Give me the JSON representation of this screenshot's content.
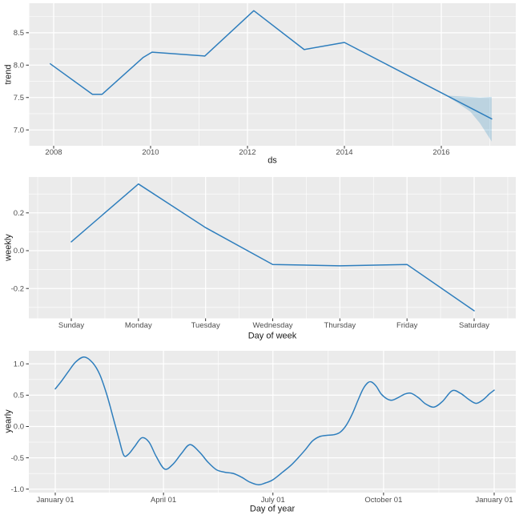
{
  "figure": {
    "background": "#FFFFFF",
    "panel_background": "#EBEBEB",
    "gridline_color": "#FFFFFF",
    "tick_mark_color": "#333333",
    "tick_label_color": "#4D4D4D",
    "axis_title_color": "#1A1A1A",
    "line_color": "#2E7EBD",
    "band_color": "#0072B2",
    "band_opacity": 0.2
  },
  "chart_data": [
    {
      "type": "line",
      "name": "trend",
      "title": "",
      "xlabel": "ds",
      "ylabel": "trend",
      "xlim": [
        2007.49,
        2017.54
      ],
      "ylim": [
        6.76,
        8.96
      ],
      "grid": "on",
      "legend": "none",
      "x_ticks": [
        {
          "value": 2008,
          "label": "2008"
        },
        {
          "value": 2010,
          "label": "2010"
        },
        {
          "value": 2012,
          "label": "2012"
        },
        {
          "value": 2014,
          "label": "2014"
        },
        {
          "value": 2016,
          "label": "2016"
        }
      ],
      "x_minor_ticks": [
        2007.5,
        2009,
        2011,
        2013,
        2015,
        2017
      ],
      "y_ticks": [
        {
          "value": 7.0,
          "label": "7.0"
        },
        {
          "value": 7.5,
          "label": "7.5"
        },
        {
          "value": 8.0,
          "label": "8.0"
        },
        {
          "value": 8.5,
          "label": "8.5"
        }
      ],
      "y_minor_ticks": [
        7.25,
        7.75,
        8.25,
        8.75
      ],
      "series": [
        {
          "name": "trend",
          "smooth": false,
          "x": [
            2007.93,
            2008.8,
            2009.0,
            2009.85,
            2010.03,
            2011.12,
            2012.13,
            2013.17,
            2014.0,
            2017.04
          ],
          "y": [
            8.02,
            7.55,
            7.55,
            8.12,
            8.2,
            8.14,
            8.84,
            8.24,
            8.35,
            7.17
          ]
        }
      ],
      "uncertainty_band": {
        "x": [
          2016.1,
          2016.35,
          2016.6,
          2016.8,
          2017.04
        ],
        "upper": [
          7.53,
          7.52,
          7.51,
          7.5,
          7.51
        ],
        "lower": [
          7.53,
          7.41,
          7.28,
          7.1,
          6.82
        ]
      }
    },
    {
      "type": "line",
      "name": "weekly",
      "title": "",
      "xlabel": "Day of week",
      "ylabel": "weekly",
      "categories": [
        "Sunday",
        "Monday",
        "Tuesday",
        "Wednesday",
        "Thursday",
        "Friday",
        "Saturday"
      ],
      "xlim": [
        -0.63,
        6.62
      ],
      "ylim": [
        -0.358,
        0.39
      ],
      "grid": "on",
      "legend": "none",
      "x_ticks": [
        {
          "value": 0,
          "label": "Sunday"
        },
        {
          "value": 1,
          "label": "Monday"
        },
        {
          "value": 2,
          "label": "Tuesday"
        },
        {
          "value": 3,
          "label": "Wednesday"
        },
        {
          "value": 4,
          "label": "Thursday"
        },
        {
          "value": 5,
          "label": "Friday"
        },
        {
          "value": 6,
          "label": "Saturday"
        }
      ],
      "x_minor_ticks": [
        -0.5,
        0.5,
        1.5,
        2.5,
        3.5,
        4.5,
        5.5,
        6.5
      ],
      "y_ticks": [
        {
          "value": -0.2,
          "label": "-0.2"
        },
        {
          "value": 0.0,
          "label": "0.0"
        },
        {
          "value": 0.2,
          "label": "0.2"
        }
      ],
      "y_minor_ticks": [
        -0.3,
        -0.1,
        0.1,
        0.3
      ],
      "series": [
        {
          "name": "weekly",
          "smooth": false,
          "x": [
            0,
            1,
            2,
            3,
            4,
            5,
            6
          ],
          "y": [
            0.047,
            0.353,
            0.122,
            -0.073,
            -0.08,
            -0.073,
            -0.318
          ]
        }
      ]
    },
    {
      "type": "line",
      "name": "yearly",
      "title": "",
      "xlabel": "Day of year",
      "ylabel": "yearly",
      "xlim": [
        -19.6,
        384
      ],
      "ylim": [
        -1.06,
        1.215
      ],
      "grid": "on",
      "legend": "none",
      "x_ticks": [
        {
          "value": 1,
          "label": "January 01"
        },
        {
          "value": 91,
          "label": "April 01"
        },
        {
          "value": 182,
          "label": "July 01"
        },
        {
          "value": 274,
          "label": "October 01"
        },
        {
          "value": 366,
          "label": "January 01"
        }
      ],
      "x_minor_ticks": [
        46,
        136.5,
        228,
        320
      ],
      "y_ticks": [
        {
          "value": -1.0,
          "label": "-1.0"
        },
        {
          "value": -0.5,
          "label": "-0.5"
        },
        {
          "value": 0.0,
          "label": "0.0"
        },
        {
          "value": 0.5,
          "label": "0.5"
        },
        {
          "value": 1.0,
          "label": "1.0"
        }
      ],
      "y_minor_ticks": [
        -0.75,
        -0.25,
        0.25,
        0.75
      ],
      "series": [
        {
          "name": "yearly",
          "smooth": true,
          "x": [
            1,
            6,
            12,
            18,
            25,
            32,
            38,
            44,
            50,
            54,
            58,
            62,
            67,
            73,
            79,
            85,
            92,
            99,
            106,
            113,
            121,
            128,
            135,
            142,
            149,
            156,
            163,
            170,
            176,
            182,
            190,
            197,
            203,
            209,
            215,
            221,
            227,
            233,
            238,
            243,
            248,
            253,
            257,
            261,
            264,
            268,
            272,
            277,
            281,
            286,
            292,
            297,
            303,
            309,
            316,
            323,
            331,
            338,
            345,
            351,
            357,
            362,
            366
          ],
          "y": [
            0.6,
            0.72,
            0.88,
            1.03,
            1.11,
            1.02,
            0.83,
            0.5,
            0.08,
            -0.2,
            -0.46,
            -0.44,
            -0.32,
            -0.18,
            -0.25,
            -0.48,
            -0.68,
            -0.6,
            -0.43,
            -0.29,
            -0.41,
            -0.57,
            -0.69,
            -0.73,
            -0.75,
            -0.81,
            -0.89,
            -0.93,
            -0.9,
            -0.85,
            -0.73,
            -0.62,
            -0.5,
            -0.37,
            -0.23,
            -0.16,
            -0.14,
            -0.13,
            -0.09,
            0.02,
            0.2,
            0.43,
            0.6,
            0.7,
            0.71,
            0.64,
            0.52,
            0.44,
            0.42,
            0.46,
            0.52,
            0.53,
            0.46,
            0.36,
            0.31,
            0.4,
            0.57,
            0.53,
            0.43,
            0.37,
            0.43,
            0.52,
            0.58
          ]
        }
      ]
    }
  ]
}
